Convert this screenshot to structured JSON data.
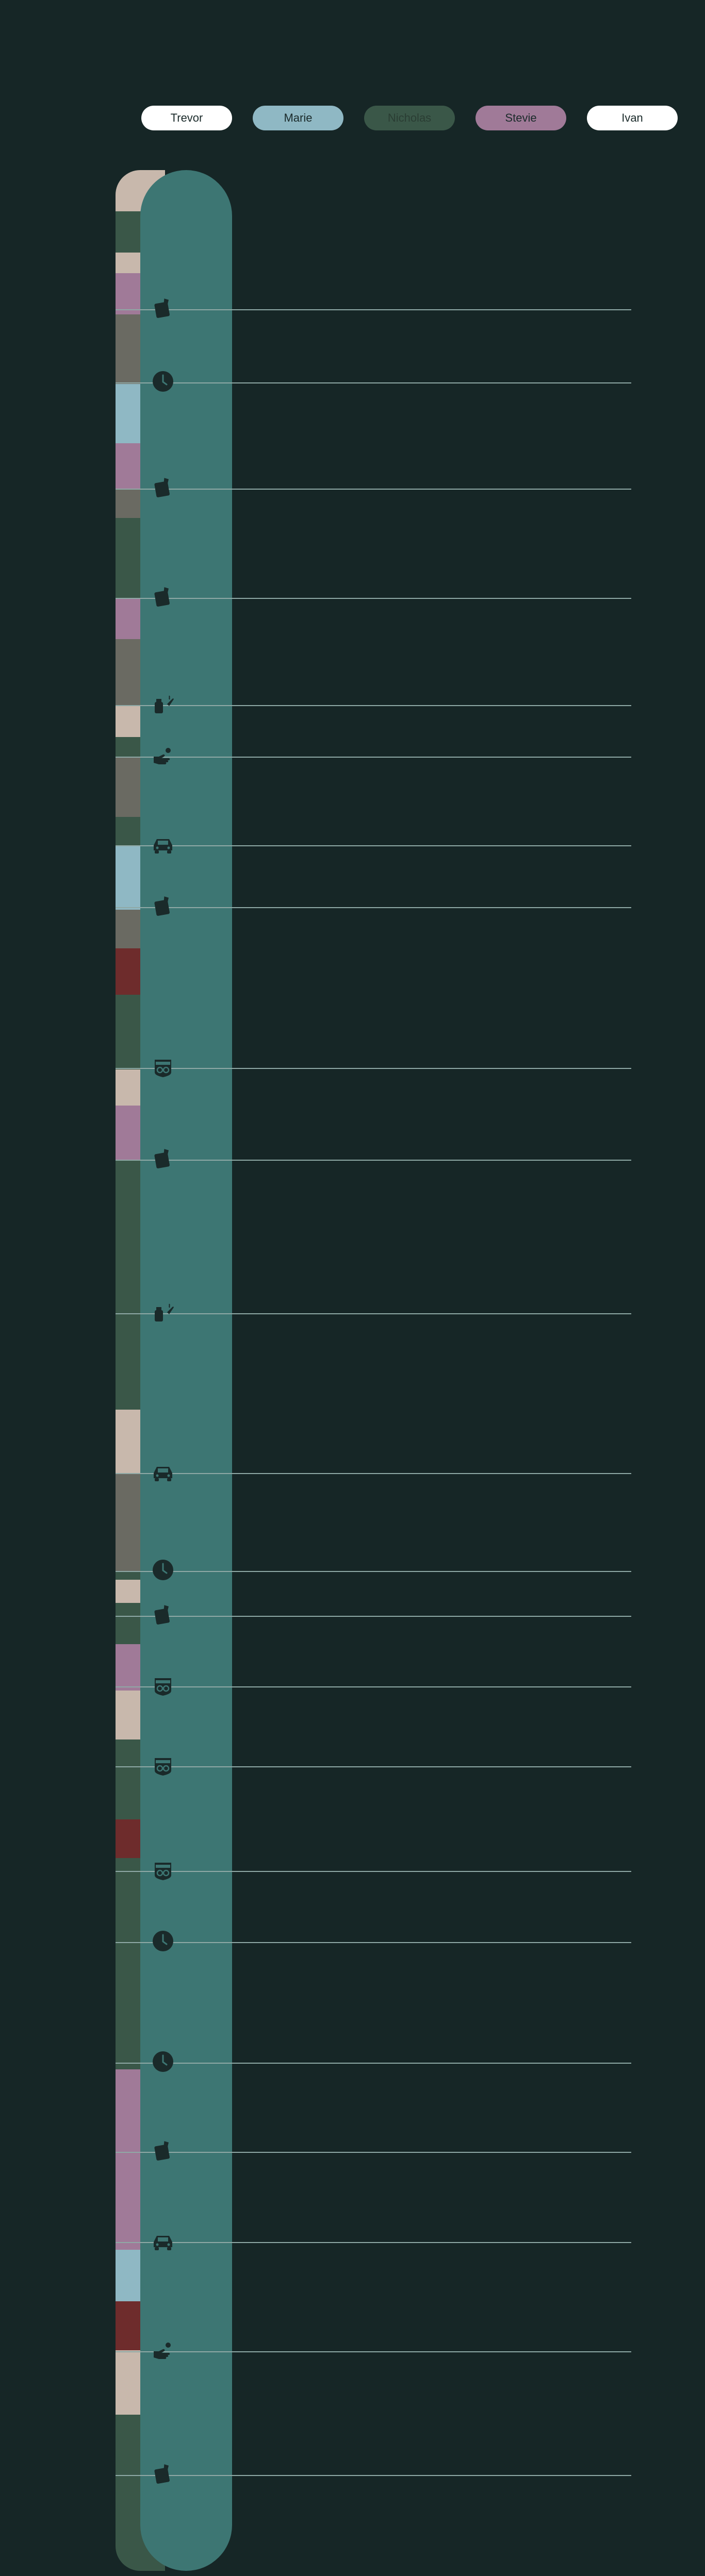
{
  "legend": {
    "items": [
      {
        "name": "Trevor",
        "bg": "#ffffff",
        "fg": "#1a2a2a"
      },
      {
        "name": "Marie",
        "bg": "#8fb8c4",
        "fg": "#1a2a2a"
      },
      {
        "name": "Nicholas",
        "bg": "#3a5748",
        "fg": "#2a3d33"
      },
      {
        "name": "Stevie",
        "bg": "#a07a98",
        "fg": "#1a2a2a"
      },
      {
        "name": "Ivan",
        "bg": "#ffffff",
        "fg": "#1a2a2a"
      }
    ]
  },
  "colors": {
    "background": "#162626",
    "front_column": "#3d7673",
    "tick_line": "#8fa9a6",
    "icon": "#1a2a2a"
  },
  "segments": [
    {
      "color": "#c8b8ac",
      "span": [
        330,
        410
      ]
    },
    {
      "color": "#3a5748",
      "span": [
        410,
        490
      ]
    },
    {
      "color": "#c8b8ac",
      "span": [
        490,
        530
      ]
    },
    {
      "color": "#a07a98",
      "span": [
        530,
        610
      ]
    },
    {
      "color": "#6a6a62",
      "span": [
        610,
        745
      ]
    },
    {
      "color": "#8fb8c4",
      "span": [
        745,
        860
      ]
    },
    {
      "color": "#a07a98",
      "span": [
        860,
        950
      ]
    },
    {
      "color": "#6a6a62",
      "span": [
        950,
        1005
      ]
    },
    {
      "color": "#3a5748",
      "span": [
        1005,
        1160
      ]
    },
    {
      "color": "#a07a98",
      "span": [
        1160,
        1240
      ]
    },
    {
      "color": "#6a6a62",
      "span": [
        1240,
        1370
      ]
    },
    {
      "color": "#c8b8ac",
      "span": [
        1370,
        1430
      ]
    },
    {
      "color": "#3a5748",
      "span": [
        1430,
        1470
      ]
    },
    {
      "color": "#6a6a62",
      "span": [
        1470,
        1585
      ]
    },
    {
      "color": "#3a5748",
      "span": [
        1585,
        1640
      ]
    },
    {
      "color": "#8fb8c4",
      "span": [
        1640,
        1765
      ]
    },
    {
      "color": "#6a6a62",
      "span": [
        1765,
        1840
      ]
    },
    {
      "color": "#6e2c2c",
      "span": [
        1840,
        1930
      ]
    },
    {
      "color": "#3a5748",
      "span": [
        1930,
        2075
      ]
    },
    {
      "color": "#c8b8ac",
      "span": [
        2075,
        2145
      ]
    },
    {
      "color": "#a07a98",
      "span": [
        2145,
        2250
      ]
    },
    {
      "color": "#3a5748",
      "span": [
        2250,
        2735
      ]
    },
    {
      "color": "#c8b8ac",
      "span": [
        2735,
        2860
      ]
    },
    {
      "color": "#6a6a62",
      "span": [
        2860,
        3050
      ]
    },
    {
      "color": "#3a5748",
      "span": [
        3050,
        3065
      ]
    },
    {
      "color": "#c8b8ac",
      "span": [
        3065,
        3110
      ]
    },
    {
      "color": "#3a5748",
      "span": [
        3110,
        3190
      ]
    },
    {
      "color": "#a07a98",
      "span": [
        3190,
        3280
      ]
    },
    {
      "color": "#c8b8ac",
      "span": [
        3280,
        3375
      ]
    },
    {
      "color": "#3a5748",
      "span": [
        3375,
        3530
      ]
    },
    {
      "color": "#6e2c2c",
      "span": [
        3530,
        3605
      ]
    },
    {
      "color": "#3a5748",
      "span": [
        3605,
        4015
      ]
    },
    {
      "color": "#a07a98",
      "span": [
        4015,
        4365
      ]
    },
    {
      "color": "#8fb8c4",
      "span": [
        4365,
        4465
      ]
    },
    {
      "color": "#6e2c2c",
      "span": [
        4465,
        4560
      ]
    },
    {
      "color": "#c8b8ac",
      "span": [
        4560,
        4685
      ]
    },
    {
      "color": "#3a5748",
      "span": [
        4685,
        4988
      ]
    }
  ],
  "events": [
    {
      "icon": "notebook-icon",
      "at": 600
    },
    {
      "icon": "clock-icon",
      "at": 742
    },
    {
      "icon": "notebook-icon",
      "at": 948
    },
    {
      "icon": "notebook-icon",
      "at": 1160
    },
    {
      "icon": "lighter-icon",
      "at": 1368
    },
    {
      "icon": "hand-icon",
      "at": 1468
    },
    {
      "icon": "car-icon",
      "at": 1640
    },
    {
      "icon": "notebook-icon",
      "at": 1760
    },
    {
      "icon": "route-66-icon",
      "at": 2072
    },
    {
      "icon": "notebook-icon",
      "at": 2250
    },
    {
      "icon": "lighter-icon",
      "at": 2548
    },
    {
      "icon": "car-icon",
      "at": 2858
    },
    {
      "icon": "clock-icon",
      "at": 3048
    },
    {
      "icon": "notebook-icon",
      "at": 3135
    },
    {
      "icon": "route-66-icon",
      "at": 3272
    },
    {
      "icon": "route-66-icon",
      "at": 3427
    },
    {
      "icon": "route-66-icon",
      "at": 3630
    },
    {
      "icon": "clock-icon",
      "at": 3768
    },
    {
      "icon": "clock-icon",
      "at": 4002
    },
    {
      "icon": "notebook-icon",
      "at": 4175
    },
    {
      "icon": "car-icon",
      "at": 4350
    },
    {
      "icon": "hand-icon",
      "at": 4562
    },
    {
      "icon": "notebook-icon",
      "at": 4802
    }
  ]
}
